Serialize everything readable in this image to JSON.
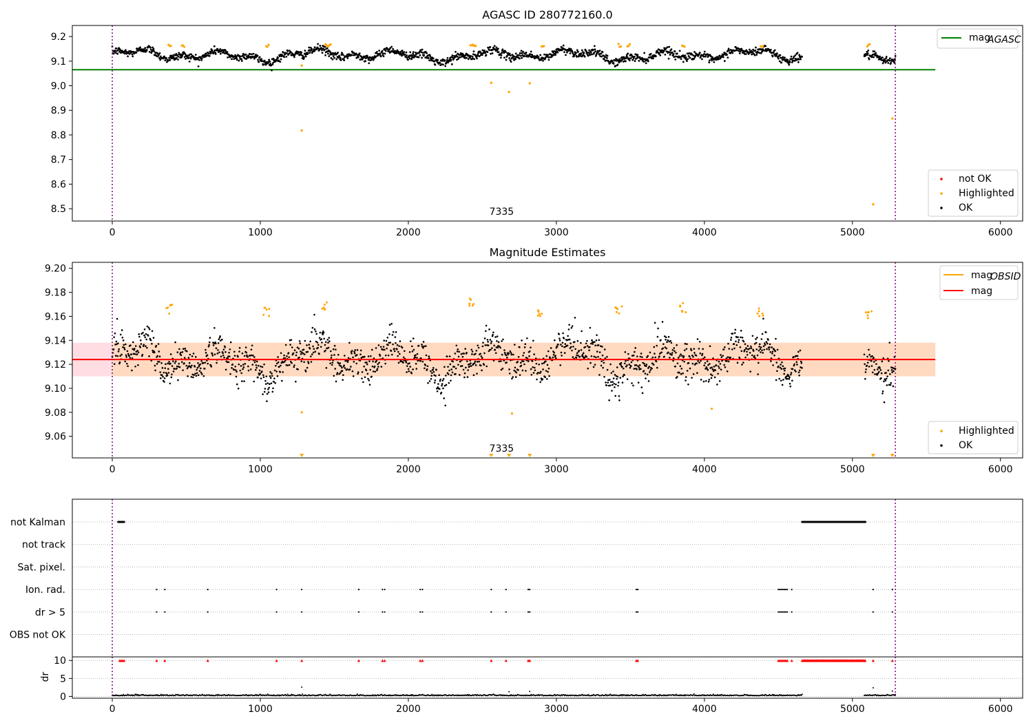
{
  "chart_data": [
    {
      "type": "scatter",
      "title": "AGASC ID 280772160.0",
      "xlim": [
        -270,
        6150
      ],
      "ylim": [
        8.45,
        9.245
      ],
      "x_ticks": [
        0,
        1000,
        2000,
        3000,
        4000,
        5000,
        6000
      ],
      "y_ticks": [
        8.5,
        8.6,
        8.7,
        8.8,
        8.9,
        9.0,
        9.1,
        9.2
      ],
      "y_tick_labels": [
        "8.5",
        "8.6",
        "8.7",
        "8.8",
        "8.9",
        "9.0",
        "9.1",
        "9.2"
      ],
      "annotation": "7335",
      "annotation_x": 2630,
      "vlines": [
        0,
        5290
      ],
      "mag_agasc": {
        "value": 9.065,
        "x_range": [
          -270,
          5560
        ]
      },
      "ok_segments": [
        [
          0,
          4660
        ],
        [
          5080,
          5290
        ]
      ],
      "ok_center": 9.124,
      "highlighted_outliers": [
        [
          1280,
          8.818
        ],
        [
          1280,
          9.082
        ],
        [
          2560,
          9.012
        ],
        [
          2680,
          8.975
        ],
        [
          2820,
          9.01
        ],
        [
          5140,
          8.518
        ],
        [
          5270,
          8.867
        ]
      ],
      "legend_line": {
        "label": "mag",
        "sub": "AGASC",
        "color": "#008000"
      },
      "legend_scatter": [
        {
          "label": "not OK",
          "color": "#ff0000"
        },
        {
          "label": "Highlighted",
          "color": "#ffa500"
        },
        {
          "label": "OK",
          "color": "#000000"
        }
      ]
    },
    {
      "type": "scatter",
      "title": "Magnitude Estimates",
      "xlim": [
        -270,
        6150
      ],
      "ylim": [
        9.042,
        9.205
      ],
      "x_ticks": [
        0,
        1000,
        2000,
        3000,
        4000,
        5000,
        6000
      ],
      "y_ticks": [
        9.06,
        9.08,
        9.1,
        9.12,
        9.14,
        9.16,
        9.18,
        9.2
      ],
      "y_tick_labels": [
        "9.06",
        "9.08",
        "9.10",
        "9.12",
        "9.14",
        "9.16",
        "9.18",
        "9.20"
      ],
      "annotation": "7335",
      "annotation_x": 2630,
      "vlines": [
        0,
        5290
      ],
      "mag": 9.124,
      "mag_band": [
        9.11,
        9.138
      ],
      "mag_obsid": {
        "value": 9.124,
        "x_range": [
          0,
          5290
        ]
      },
      "band_x_range": [
        -270,
        5560
      ],
      "ok_segments": [
        [
          0,
          4660
        ],
        [
          5080,
          5290
        ]
      ],
      "highlight_clusters": [
        [
          380,
          9.162
        ],
        [
          1040,
          9.16
        ],
        [
          1440,
          9.164
        ],
        [
          2420,
          9.168
        ],
        [
          2900,
          9.16
        ],
        [
          3420,
          9.162
        ],
        [
          3850,
          9.163
        ],
        [
          4380,
          9.16
        ],
        [
          5110,
          9.158
        ]
      ],
      "low_markers_x": [
        1280,
        2560,
        2680,
        2820,
        5140,
        5270
      ],
      "legend_lines": [
        {
          "label": "mag",
          "sub": "OBSID",
          "color": "#ffa500"
        },
        {
          "label": "mag",
          "sub": "",
          "color": "#ff0000"
        }
      ],
      "legend_scatter": [
        {
          "label": "Highlighted",
          "color": "#ffa500"
        },
        {
          "label": "OK",
          "color": "#000000"
        }
      ]
    },
    {
      "type": "scatter",
      "title": "",
      "xlim": [
        -270,
        6150
      ],
      "x_ticks": [
        0,
        1000,
        2000,
        3000,
        4000,
        5000,
        6000
      ],
      "flag_categories": [
        "not Kalman",
        "not track",
        "Sat. pixel.",
        "Ion. rad.",
        "dr > 5",
        "OBS not OK"
      ],
      "flag_points": {
        "not Kalman": [
          [
            40,
            80
          ],
          [
            4660,
            5090
          ]
        ],
        "not track": [],
        "Sat. pixel.": [],
        "Ion. rad.": [
          300,
          355,
          645,
          1110,
          1280,
          1665,
          1825,
          1840,
          2080,
          2095,
          2560,
          2660,
          2810,
          2820,
          3540,
          3550,
          4500,
          4510,
          4520,
          4530,
          4540,
          4550,
          4560,
          4590,
          5140,
          5270
        ],
        "dr > 5": [
          300,
          355,
          645,
          1110,
          1280,
          1665,
          1825,
          1840,
          2080,
          2095,
          2560,
          2660,
          2810,
          2820,
          3540,
          3550,
          4500,
          4510,
          4520,
          4530,
          4540,
          4550,
          4560,
          4590,
          5140,
          5270
        ],
        "OBS not OK": []
      },
      "dr_ylabel": "dr",
      "dr_yticks": [
        0,
        5,
        10
      ],
      "dr_ylim": [
        -0.5,
        11
      ]
    }
  ]
}
